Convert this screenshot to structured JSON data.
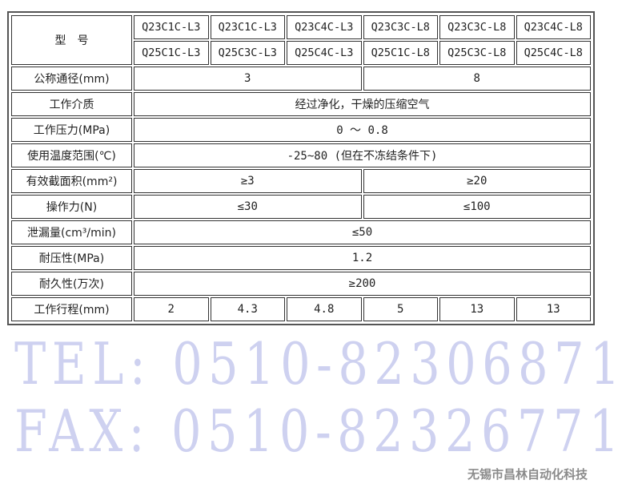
{
  "table": {
    "model_label": "型　号",
    "models_row1": [
      "Q23C1C-L3",
      "Q23C1C-L3",
      "Q23C4C-L3",
      "Q23C3C-L8",
      "Q23C3C-L8",
      "Q23C4C-L8"
    ],
    "models_row2": [
      "Q25C1C-L3",
      "Q25C3C-L3",
      "Q25C4C-L3",
      "Q25C1C-L8",
      "Q25C3C-L8",
      "Q25C4C-L8"
    ],
    "rows": {
      "bore": {
        "label": "公称通径(mm)",
        "v1": "3",
        "v2": "8"
      },
      "medium": {
        "label": "工作介质",
        "value": "经过净化，干燥的压缩空气"
      },
      "pressure": {
        "label": "工作压力(MPa)",
        "value": "0 ～ 0.8"
      },
      "temp": {
        "label": "使用温度范围(℃)",
        "value": "-25~80 (但在不冻结条件下)"
      },
      "area": {
        "label": "有效截面积(mm²)",
        "v1": "≥3",
        "v2": "≥20"
      },
      "force": {
        "label": "操作力(N)",
        "v1": "≤30",
        "v2": "≤100"
      },
      "leak": {
        "label": "泄漏量(cm³/min)",
        "value": "≤50"
      },
      "proof": {
        "label": "耐压性(MPa)",
        "value": "1.2"
      },
      "durability": {
        "label": "耐久性(万次)",
        "value": "≥200"
      },
      "stroke": {
        "label": "工作行程(mm)",
        "values": [
          "2",
          "4.3",
          "4.8",
          "5",
          "13",
          "13"
        ]
      }
    }
  },
  "watermarks": {
    "tel": "TEL: 0510-82306871",
    "fax": "FAX: 0510-82326771",
    "company": "无锡市昌林自动化科技"
  }
}
